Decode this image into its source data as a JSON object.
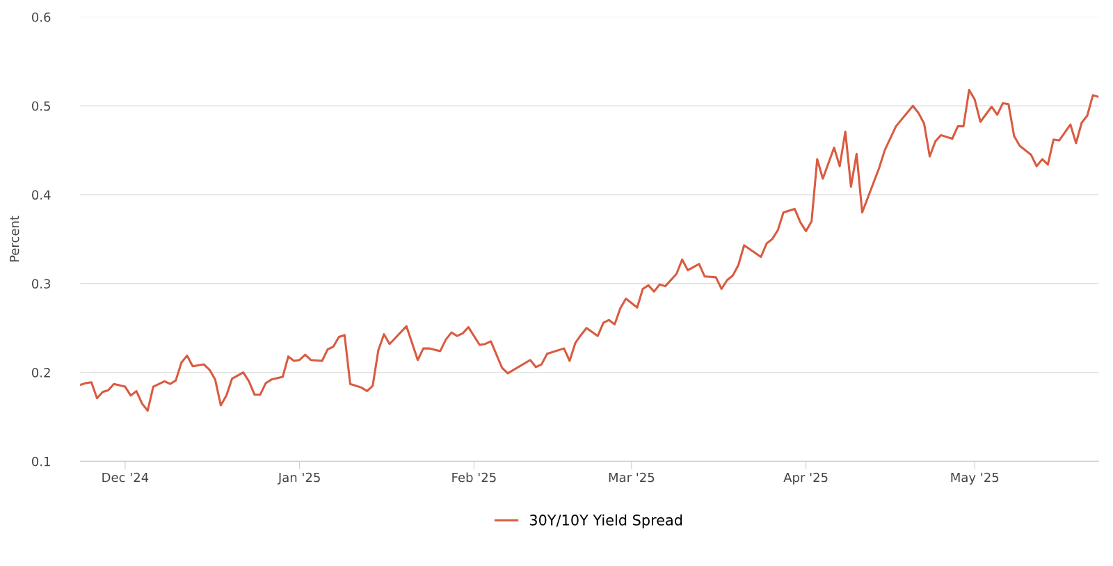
{
  "chart_data": {
    "type": "line",
    "ylabel": "Percent",
    "x": [
      "2024-11-23",
      "2024-11-24",
      "2024-11-25",
      "2024-11-26",
      "2024-11-27",
      "2024-11-28",
      "2024-11-29",
      "2024-12-01",
      "2024-12-02",
      "2024-12-03",
      "2024-12-04",
      "2024-12-05",
      "2024-12-06",
      "2024-12-08",
      "2024-12-09",
      "2024-12-10",
      "2024-12-11",
      "2024-12-12",
      "2024-12-13",
      "2024-12-15",
      "2024-12-16",
      "2024-12-17",
      "2024-12-18",
      "2024-12-19",
      "2024-12-20",
      "2024-12-22",
      "2024-12-23",
      "2024-12-24",
      "2024-12-25",
      "2024-12-26",
      "2024-12-27",
      "2024-12-29",
      "2024-12-30",
      "2024-12-31",
      "2025-01-01",
      "2025-01-02",
      "2025-01-03",
      "2025-01-05",
      "2025-01-06",
      "2025-01-07",
      "2025-01-08",
      "2025-01-09",
      "2025-01-10",
      "2025-01-12",
      "2025-01-13",
      "2025-01-14",
      "2025-01-15",
      "2025-01-16",
      "2025-01-17",
      "2025-01-20",
      "2025-01-22",
      "2025-01-23",
      "2025-01-24",
      "2025-01-26",
      "2025-01-27",
      "2025-01-28",
      "2025-01-29",
      "2025-01-30",
      "2025-01-31",
      "2025-02-02",
      "2025-02-03",
      "2025-02-04",
      "2025-02-05",
      "2025-02-06",
      "2025-02-07",
      "2025-02-11",
      "2025-02-12",
      "2025-02-13",
      "2025-02-14",
      "2025-02-17",
      "2025-02-18",
      "2025-02-19",
      "2025-02-20",
      "2025-02-21",
      "2025-02-23",
      "2025-02-24",
      "2025-02-25",
      "2025-02-26",
      "2025-02-27",
      "2025-02-28",
      "2025-03-02",
      "2025-03-03",
      "2025-03-04",
      "2025-03-05",
      "2025-03-06",
      "2025-03-07",
      "2025-03-09",
      "2025-03-10",
      "2025-03-11",
      "2025-03-13",
      "2025-03-14",
      "2025-03-16",
      "2025-03-17",
      "2025-03-18",
      "2025-03-19",
      "2025-03-20",
      "2025-03-21",
      "2025-03-24",
      "2025-03-25",
      "2025-03-26",
      "2025-03-27",
      "2025-03-28",
      "2025-03-30",
      "2025-03-31",
      "2025-04-01",
      "2025-04-02",
      "2025-04-03",
      "2025-04-04",
      "2025-04-06",
      "2025-04-07",
      "2025-04-08",
      "2025-04-09",
      "2025-04-10",
      "2025-04-11",
      "2025-04-14",
      "2025-04-15",
      "2025-04-17",
      "2025-04-20",
      "2025-04-21",
      "2025-04-22",
      "2025-04-23",
      "2025-04-24",
      "2025-04-25",
      "2025-04-27",
      "2025-04-28",
      "2025-04-29",
      "2025-04-30",
      "2025-05-01",
      "2025-05-02",
      "2025-05-04",
      "2025-05-05",
      "2025-05-06",
      "2025-05-07",
      "2025-05-08",
      "2025-05-09",
      "2025-05-11",
      "2025-05-12",
      "2025-05-13",
      "2025-05-14",
      "2025-05-15",
      "2025-05-16",
      "2025-05-18",
      "2025-05-19",
      "2025-05-20",
      "2025-05-21",
      "2025-05-22",
      "2025-05-23"
    ],
    "series": [
      {
        "name": "30Y/10Y Yield Spread",
        "color": "#d95b40",
        "values": [
          0.186,
          0.188,
          0.189,
          0.171,
          0.178,
          0.18,
          0.187,
          0.184,
          0.174,
          0.179,
          0.165,
          0.157,
          0.184,
          0.19,
          0.187,
          0.191,
          0.211,
          0.219,
          0.207,
          0.209,
          0.203,
          0.192,
          0.163,
          0.174,
          0.193,
          0.2,
          0.19,
          0.175,
          0.175,
          0.188,
          0.192,
          0.195,
          0.218,
          0.213,
          0.214,
          0.22,
          0.214,
          0.213,
          0.226,
          0.229,
          0.24,
          0.242,
          0.187,
          0.183,
          0.179,
          0.185,
          0.225,
          0.243,
          0.232,
          0.252,
          0.214,
          0.227,
          0.227,
          0.224,
          0.237,
          0.245,
          0.241,
          0.244,
          0.251,
          0.231,
          0.232,
          0.235,
          0.22,
          0.205,
          0.199,
          0.214,
          0.206,
          0.209,
          0.221,
          0.227,
          0.213,
          0.233,
          0.242,
          0.25,
          0.241,
          0.256,
          0.259,
          0.254,
          0.272,
          0.283,
          0.273,
          0.294,
          0.298,
          0.291,
          0.299,
          0.297,
          0.311,
          0.327,
          0.315,
          0.322,
          0.308,
          0.307,
          0.294,
          0.304,
          0.309,
          0.321,
          0.343,
          0.33,
          0.345,
          0.35,
          0.36,
          0.38,
          0.384,
          0.369,
          0.359,
          0.37,
          0.44,
          0.418,
          0.453,
          0.432,
          0.471,
          0.409,
          0.446,
          0.38,
          0.43,
          0.45,
          0.477,
          0.5,
          0.492,
          0.48,
          0.443,
          0.46,
          0.467,
          0.463,
          0.477,
          0.477,
          0.518,
          0.507,
          0.482,
          0.499,
          0.49,
          0.503,
          0.502,
          0.466,
          0.455,
          0.445,
          0.432,
          0.44,
          0.434,
          0.462,
          0.461,
          0.479,
          0.458,
          0.481,
          0.489,
          0.512,
          0.51
        ]
      }
    ],
    "xlim": [
      "2024-11-23",
      "2025-05-23"
    ],
    "xticks": [
      {
        "value": "2024-12-01",
        "label": "Dec '24"
      },
      {
        "value": "2025-01-01",
        "label": "Jan '25"
      },
      {
        "value": "2025-02-01",
        "label": "Feb '25"
      },
      {
        "value": "2025-03-01",
        "label": "Mar '25"
      },
      {
        "value": "2025-04-01",
        "label": "Apr '25"
      },
      {
        "value": "2025-05-01",
        "label": "May '25"
      }
    ],
    "ylim": [
      0.1,
      0.6
    ],
    "yticks": [
      0.1,
      0.2,
      0.3,
      0.4,
      0.5,
      0.6
    ],
    "grid": "y",
    "legend": "bottom",
    "marker": "none",
    "line_style": "solid"
  }
}
